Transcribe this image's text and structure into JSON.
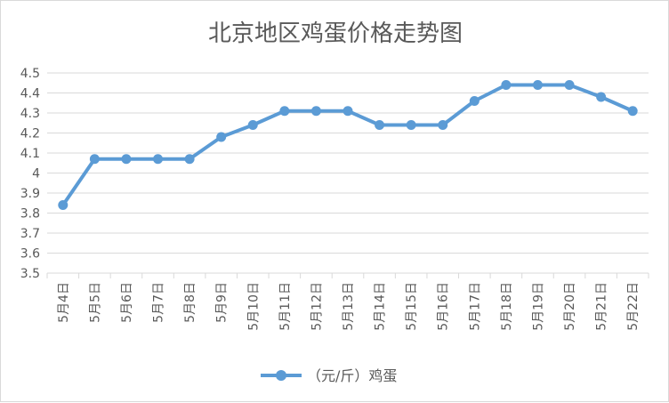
{
  "chart_data": {
    "type": "line",
    "title": "北京地区鸡蛋价格走势图",
    "categories": [
      "5月4日",
      "5月5日",
      "5月6日",
      "5月7日",
      "5月8日",
      "5月9日",
      "5月10日",
      "5月11日",
      "5月12日",
      "5月13日",
      "5月14日",
      "5月15日",
      "5月16日",
      "5月17日",
      "5月18日",
      "5月19日",
      "5月20日",
      "5月21日",
      "5月22日"
    ],
    "series": [
      {
        "name": "（元/斤）鸡蛋",
        "values": [
          3.84,
          4.07,
          4.07,
          4.07,
          4.07,
          4.18,
          4.24,
          4.31,
          4.31,
          4.31,
          4.24,
          4.24,
          4.24,
          4.36,
          4.44,
          4.44,
          4.44,
          4.38,
          4.31
        ],
        "color": "#5b9bd5"
      }
    ],
    "ylim": [
      3.5,
      4.5
    ],
    "yticks": [
      3.5,
      3.6,
      3.7,
      3.8,
      3.9,
      4,
      4.1,
      4.2,
      4.3,
      4.4,
      4.5
    ],
    "ytick_labels": [
      "3.5",
      "3.6",
      "3.7",
      "3.8",
      "3.9",
      "4",
      "4.1",
      "4.2",
      "4.3",
      "4.4",
      "4.5"
    ],
    "xlabel": "",
    "ylabel": "",
    "grid": true,
    "legend_position": "bottom"
  }
}
